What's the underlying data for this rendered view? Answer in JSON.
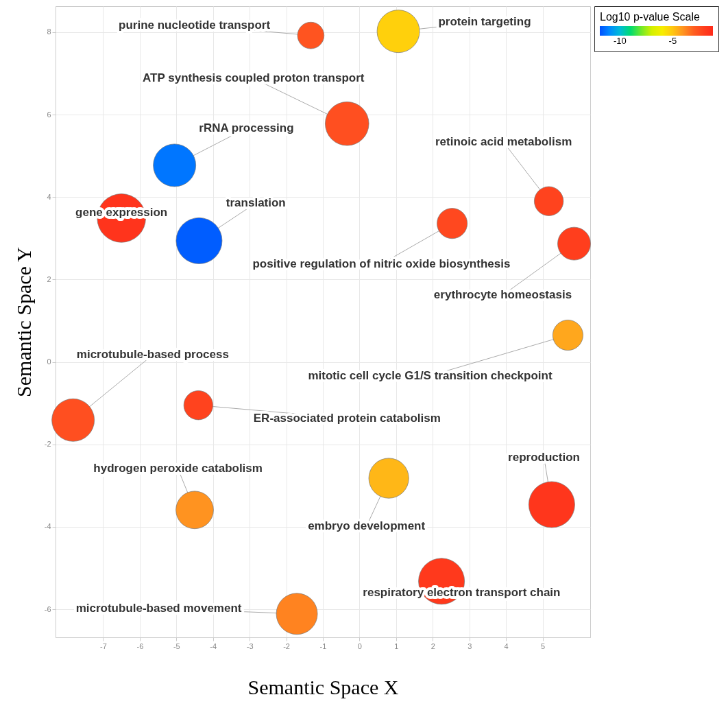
{
  "chart_data": {
    "type": "bubble",
    "xlabel": "Semantic Space X",
    "ylabel": "Semantic Space Y",
    "clabel": "Log10 p-value Scale",
    "x": [
      -1.33,
      1.06,
      -0.34,
      -5.05,
      -6.5,
      -4.38,
      2.53,
      5.17,
      5.86,
      5.69,
      -7.82,
      -4.4,
      -4.5,
      0.8,
      5.25,
      2.24,
      -1.71
    ],
    "values": [
      7.92,
      8.02,
      5.78,
      4.77,
      3.49,
      2.94,
      3.36,
      3.9,
      2.87,
      0.65,
      -1.41,
      -1.05,
      -3.59,
      -2.82,
      -3.46,
      -5.32,
      -6.11
    ],
    "sizes": [
      0.3,
      0.77,
      0.81,
      0.77,
      1,
      0.9,
      0.39,
      0.36,
      0.46,
      0.39,
      0.77,
      0.36,
      0.6,
      0.68,
      0.9,
      0.9,
      0.72
    ],
    "cvalues": [
      -2.8,
      -5.2,
      -2.7,
      -11.3,
      -1.6,
      -11.7,
      -2.4,
      -2.2,
      -2,
      -4.4,
      -2.7,
      -2.2,
      -4,
      -4.7,
      -1.7,
      -1.8,
      -3.7
    ],
    "clim": [
      -11.9,
      -1.2
    ],
    "cticks": [
      -10,
      -5
    ],
    "xlim": [
      -8.3,
      6.3
    ],
    "ylim": [
      -6.68,
      8.63
    ],
    "xticks": [
      -7,
      -6,
      -5,
      -4,
      -3,
      -2,
      -1,
      0,
      1,
      2,
      3,
      4,
      5
    ],
    "yticks": [
      -6,
      -4,
      -2,
      0,
      2,
      4,
      6,
      8
    ],
    "grid": true,
    "annotations": [
      {
        "text": "purine nucleotide transport",
        "x": -1.33,
        "y": 7.92
      },
      {
        "text": "protein targeting",
        "x": 1.06,
        "y": 8.02
      },
      {
        "text": "ATP synthesis coupled proton transport",
        "x": -0.34,
        "y": 5.78
      },
      {
        "text": "rRNA processing",
        "x": -5.05,
        "y": 4.77
      },
      {
        "text": "gene expression",
        "x": -6.5,
        "y": 3.49
      },
      {
        "text": "translation",
        "x": -4.38,
        "y": 2.94
      },
      {
        "text": "positive regulation of nitric oxide biosynthesis",
        "x": 2.53,
        "y": 3.36
      },
      {
        "text": "retinoic acid metabolism",
        "x": 5.17,
        "y": 3.9
      },
      {
        "text": "erythrocyte homeostasis",
        "x": 5.86,
        "y": 2.87
      },
      {
        "text": "mitotic cell cycle G1/S transition checkpoint",
        "x": 5.69,
        "y": 0.65
      },
      {
        "text": "microtubule-based process",
        "x": -7.82,
        "y": -1.41
      },
      {
        "text": "ER-associated protein catabolism",
        "x": -4.4,
        "y": -1.05
      },
      {
        "text": "hydrogen peroxide catabolism",
        "x": -4.5,
        "y": -3.59
      },
      {
        "text": "embryo development",
        "x": 0.8,
        "y": -2.82
      },
      {
        "text": "reproduction",
        "x": 5.25,
        "y": -3.46
      },
      {
        "text": "respiratory electron transport chain",
        "x": 2.24,
        "y": -5.32
      },
      {
        "text": "microtubule-based movement",
        "x": -1.71,
        "y": -6.11
      }
    ]
  }
}
